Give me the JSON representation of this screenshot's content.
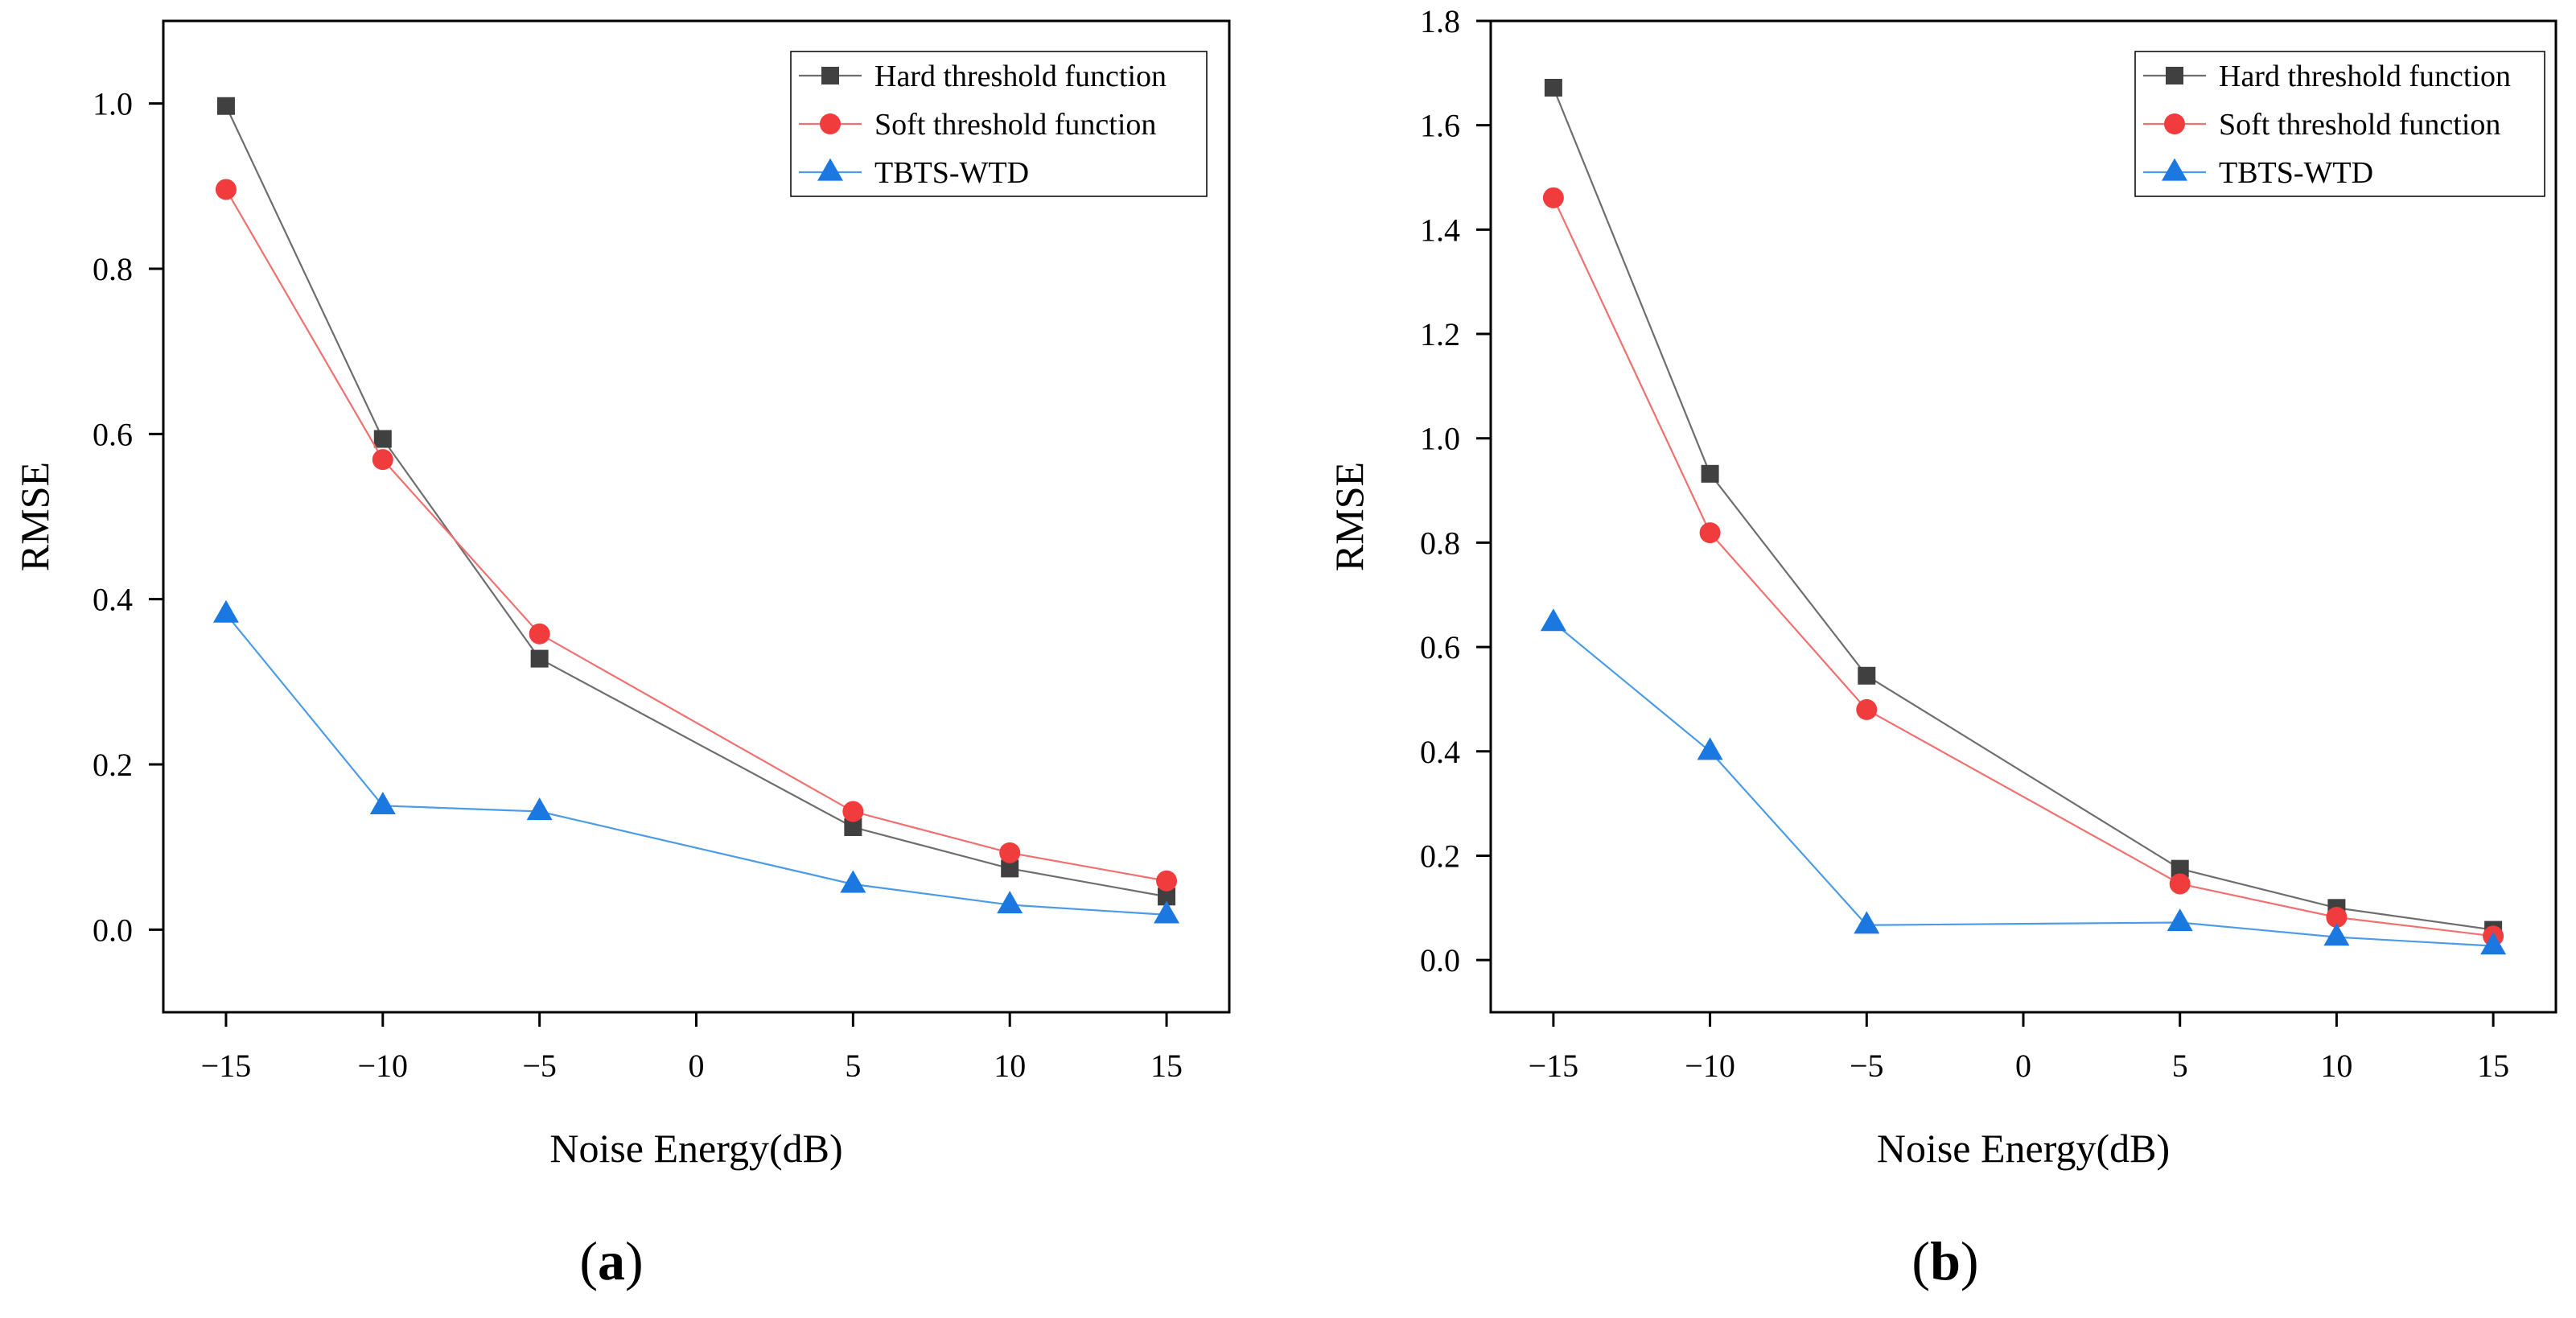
{
  "figure": {
    "panels": [
      {
        "label_paren_open": "(",
        "label_letter": "a",
        "label_paren_close": ")"
      },
      {
        "label_paren_open": "(",
        "label_letter": "b",
        "label_paren_close": ")"
      }
    ]
  },
  "colors": {
    "hard": "#404040",
    "soft": "#f03c3c",
    "tbts": "#1a78e0",
    "hard_line": "#6e6e6e",
    "soft_line": "#f07070",
    "tbts_line": "#4b9be6"
  },
  "chart_data": [
    {
      "type": "line",
      "xlabel": "Noise Energy(dB)",
      "ylabel": "RMSE",
      "x_ticks": [
        -15,
        -10,
        -5,
        0,
        5,
        10,
        15
      ],
      "x_tick_labels": [
        "−15",
        "−10",
        "−5",
        "0",
        "5",
        "10",
        "15"
      ],
      "y_ticks": [
        0.0,
        0.2,
        0.4,
        0.6,
        0.8,
        1.0
      ],
      "y_tick_labels": [
        "0.0",
        "0.2",
        "0.4",
        "0.6",
        "0.8",
        "1.0"
      ],
      "xlim": [
        -17.0,
        17.0
      ],
      "ylim": [
        -0.1,
        1.1
      ],
      "grid": false,
      "legend_position": "top-right",
      "x": [
        -15,
        -10,
        -5,
        5,
        10,
        15
      ],
      "series": [
        {
          "name": "Hard threshold function",
          "marker": "square",
          "color_key": "hard",
          "values": [
            0.997,
            0.594,
            0.328,
            0.124,
            0.074,
            0.04
          ]
        },
        {
          "name": "Soft threshold function",
          "marker": "circle",
          "color_key": "soft",
          "values": [
            0.896,
            0.569,
            0.358,
            0.143,
            0.093,
            0.059
          ]
        },
        {
          "name": "TBTS-WTD",
          "marker": "triangle",
          "color_key": "tbts",
          "values": [
            0.382,
            0.15,
            0.143,
            0.055,
            0.03,
            0.018
          ]
        }
      ]
    },
    {
      "type": "line",
      "xlabel": "Noise Energy(dB)",
      "ylabel": "RMSE",
      "x_ticks": [
        -15,
        -10,
        -5,
        0,
        5,
        10,
        15
      ],
      "x_tick_labels": [
        "−15",
        "−10",
        "−5",
        "0",
        "5",
        "10",
        "15"
      ],
      "y_ticks": [
        0.0,
        0.2,
        0.4,
        0.6,
        0.8,
        1.0,
        1.2,
        1.4,
        1.6,
        1.8
      ],
      "y_tick_labels": [
        "0.0",
        "0.2",
        "0.4",
        "0.6",
        "0.8",
        "1.0",
        "1.2",
        "1.4",
        "1.6",
        "1.8"
      ],
      "xlim": [
        -17.0,
        17.0
      ],
      "ylim": [
        -0.1,
        1.8
      ],
      "grid": false,
      "legend_position": "top-right",
      "x": [
        -15,
        -10,
        -5,
        5,
        10,
        15
      ],
      "series": [
        {
          "name": "Hard threshold function",
          "marker": "square",
          "color_key": "hard",
          "values": [
            1.672,
            0.932,
            0.545,
            0.175,
            0.1,
            0.058
          ]
        },
        {
          "name": "Soft threshold function",
          "marker": "circle",
          "color_key": "soft",
          "values": [
            1.461,
            0.819,
            0.48,
            0.146,
            0.082,
            0.046
          ]
        },
        {
          "name": "TBTS-WTD",
          "marker": "triangle",
          "color_key": "tbts",
          "values": [
            0.647,
            0.4,
            0.067,
            0.072,
            0.044,
            0.027
          ]
        }
      ]
    }
  ]
}
